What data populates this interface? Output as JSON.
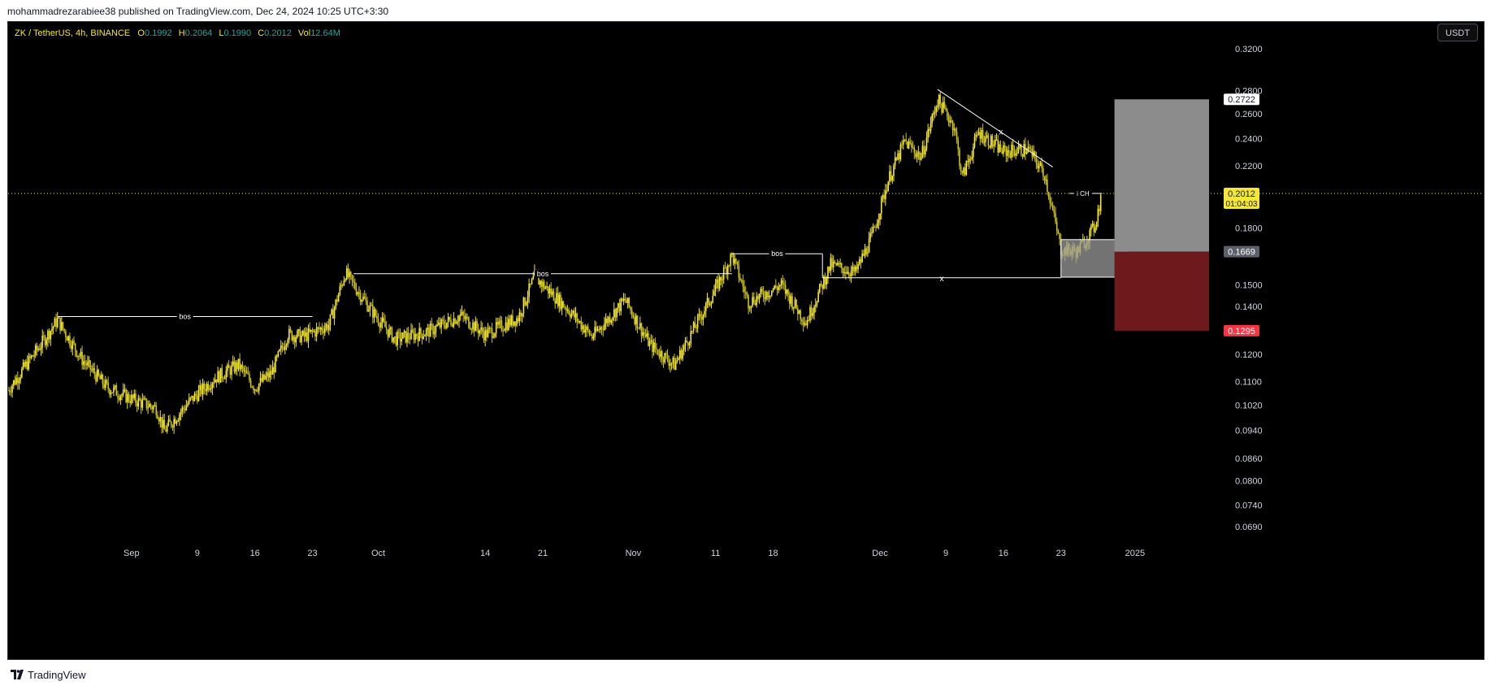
{
  "header": {
    "publisher_line": "mohammadrezarabiee38 published on TradingView.com, Dec 24, 2024 10:25 UTC+3:30"
  },
  "legend": {
    "symbol": "ZK / TetherUS, 4h, BINANCE",
    "o_label": "O",
    "o": "0.1992",
    "h_label": "H",
    "h": "0.2064",
    "l_label": "L",
    "l": "0.1990",
    "c_label": "C",
    "c": "0.2012",
    "vol_label": "Vol",
    "vol": "12.64M"
  },
  "currency_button": "USDT",
  "footer": {
    "brand": "TradingView"
  },
  "colors": {
    "background": "#000000",
    "candle": "#f5e63a",
    "candle_dark": "#c9c21f",
    "profit_zone": "#8c8c8c",
    "loss_zone": "#6e1a1d",
    "stop_badge": "#f23645",
    "current_price_badge": "#f5e63a",
    "entry_badge": "#5d606b"
  },
  "chart_data": {
    "type": "candlestick",
    "title": "ZK / TetherUS, 4h, BINANCE",
    "y_scale": "log",
    "ylim": [
      0.064,
      0.34
    ],
    "y_ticks": [
      "0.3200",
      "0.2800",
      "0.2600",
      "0.2400",
      "0.2200",
      "0.1800",
      "0.1500",
      "0.1400",
      "0.1200",
      "0.1100",
      "0.1020",
      "0.0940",
      "0.0860",
      "0.0800",
      "0.0740",
      "0.0690"
    ],
    "x_ticks": [
      "Sep",
      "9",
      "16",
      "23",
      "Oct",
      "14",
      "21",
      "Nov",
      "11",
      "18",
      "Dec",
      "9",
      "16",
      "23",
      "2025"
    ],
    "x_tick_days": [
      0,
      8,
      15,
      22,
      30,
      43,
      50,
      61,
      71,
      78,
      91,
      99,
      106,
      113,
      122
    ],
    "x_range_days": [
      -15,
      131
    ],
    "price_path": [
      {
        "day": -15,
        "price": 0.107
      },
      {
        "day": -11,
        "price": 0.124
      },
      {
        "day": -9,
        "price": 0.134
      },
      {
        "day": -6,
        "price": 0.118
      },
      {
        "day": -3,
        "price": 0.108
      },
      {
        "day": 0,
        "price": 0.104
      },
      {
        "day": 3,
        "price": 0.101
      },
      {
        "day": 4,
        "price": 0.094
      },
      {
        "day": 7,
        "price": 0.103
      },
      {
        "day": 10,
        "price": 0.111
      },
      {
        "day": 13,
        "price": 0.116
      },
      {
        "day": 15,
        "price": 0.108
      },
      {
        "day": 17,
        "price": 0.113
      },
      {
        "day": 19,
        "price": 0.128
      },
      {
        "day": 21,
        "price": 0.127
      },
      {
        "day": 24,
        "price": 0.132
      },
      {
        "day": 26,
        "price": 0.156
      },
      {
        "day": 29,
        "price": 0.139
      },
      {
        "day": 32,
        "price": 0.126
      },
      {
        "day": 36,
        "price": 0.129
      },
      {
        "day": 40,
        "price": 0.136
      },
      {
        "day": 43,
        "price": 0.128
      },
      {
        "day": 47,
        "price": 0.135
      },
      {
        "day": 49,
        "price": 0.154
      },
      {
        "day": 53,
        "price": 0.139
      },
      {
        "day": 56,
        "price": 0.127
      },
      {
        "day": 60,
        "price": 0.143
      },
      {
        "day": 63,
        "price": 0.124
      },
      {
        "day": 66,
        "price": 0.116
      },
      {
        "day": 68,
        "price": 0.128
      },
      {
        "day": 71,
        "price": 0.148
      },
      {
        "day": 73,
        "price": 0.165
      },
      {
        "day": 75,
        "price": 0.142
      },
      {
        "day": 79,
        "price": 0.15
      },
      {
        "day": 82,
        "price": 0.133
      },
      {
        "day": 85,
        "price": 0.16
      },
      {
        "day": 88,
        "price": 0.156
      },
      {
        "day": 90,
        "price": 0.175
      },
      {
        "day": 92,
        "price": 0.21
      },
      {
        "day": 94,
        "price": 0.238
      },
      {
        "day": 96,
        "price": 0.226
      },
      {
        "day": 98,
        "price": 0.272
      },
      {
        "day": 100,
        "price": 0.25
      },
      {
        "day": 101,
        "price": 0.212
      },
      {
        "day": 103,
        "price": 0.245
      },
      {
        "day": 106,
        "price": 0.23
      },
      {
        "day": 109,
        "price": 0.232
      },
      {
        "day": 111,
        "price": 0.214
      },
      {
        "day": 113,
        "price": 0.168
      },
      {
        "day": 115,
        "price": 0.167
      },
      {
        "day": 117,
        "price": 0.18
      },
      {
        "day": 118,
        "price": 0.2012
      }
    ],
    "annotations": {
      "bos_lines": [
        {
          "label": "bos",
          "price": 0.1355,
          "day_from": -9,
          "day_to": 22
        },
        {
          "label": "bos",
          "price": 0.1555,
          "day_from": 27,
          "day_to": 73
        },
        {
          "label": "bos",
          "price": 0.1658,
          "day_from": 73,
          "day_to": 84
        }
      ],
      "choch": {
        "label": "i CH",
        "price": 0.2012,
        "day_from": 114,
        "day_to": 118
      },
      "x_line": {
        "label": "x",
        "price": 0.1535,
        "day_from": 84,
        "day_to": 113
      },
      "trendline": {
        "label": "x",
        "from_day": 98,
        "from_price": 0.281,
        "to_day": 112,
        "to_price": 0.219
      },
      "demand_zone": {
        "price_top": 0.1735,
        "price_bottom": 0.1538,
        "day_from": 113,
        "day_to": 121
      }
    },
    "position": {
      "entry": "0.1669",
      "target": "0.2722",
      "stop": "0.1295",
      "current_price": "0.2012",
      "countdown": "01:04:03",
      "day_from": 119.5,
      "day_to": 131
    }
  }
}
